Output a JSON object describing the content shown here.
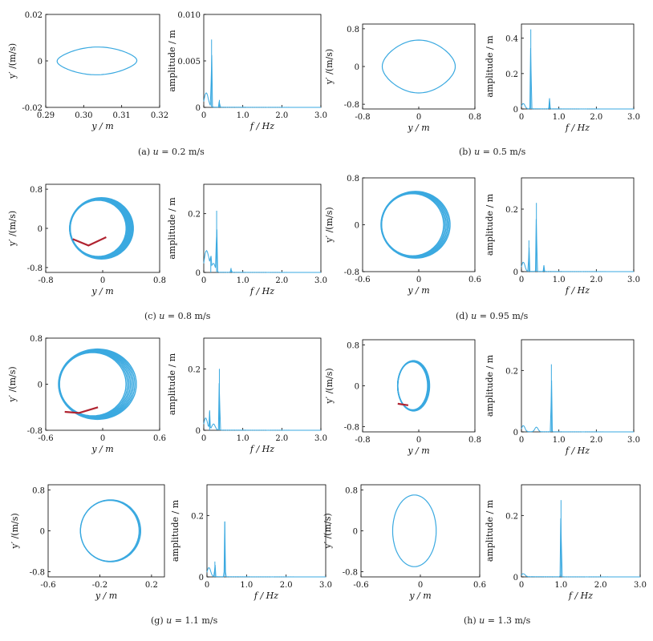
{
  "colors": {
    "trace": "#3aa9e0",
    "highlight": "#b02330",
    "axis": "#000000"
  },
  "captions": [
    {
      "letter": "(a)",
      "sym": "u",
      "eq": "=",
      "val": "0.2 m/s"
    },
    {
      "letter": "(b)",
      "sym": "u",
      "eq": "=",
      "val": "0.5 m/s"
    },
    {
      "letter": "(c)",
      "sym": "u",
      "eq": "=",
      "val": "0.8 m/s"
    },
    {
      "letter": "(d)",
      "sym": "u",
      "eq": "=",
      "val": "0.95 m/s"
    },
    {
      "letter": "(g)",
      "sym": "u",
      "eq": "=",
      "val": "1.1 m/s"
    },
    {
      "letter": "(h)",
      "sym": "u",
      "eq": "=",
      "val": "1.3 m/s"
    }
  ],
  "chart_data": [
    {
      "panel": "a",
      "type": "line",
      "kind": "phase",
      "xlabel": "y / m",
      "ylabel": "y′ /(m/s)",
      "xlim": [
        0.29,
        0.32
      ],
      "ylim": [
        -0.02,
        0.02
      ],
      "xticks": [
        "0.29",
        "0.30",
        "0.31",
        "0.32"
      ],
      "yticks": [
        "0.02",
        "0",
        "-0.02"
      ],
      "series": [
        {
          "values": {
            "cx": 0.3035,
            "cy": 0,
            "rx": 0.0105,
            "ry": 0.0052,
            "pinch": 0.15,
            "skew": 0.2
          }
        }
      ]
    },
    {
      "panel": "a",
      "type": "line",
      "kind": "spectrum",
      "xlabel": "f / Hz",
      "ylabel": "amplitude / m",
      "xlim": [
        0,
        3
      ],
      "ylim": [
        0,
        0.01
      ],
      "xticks": [
        "0",
        "1.0",
        "2.0",
        "3.0"
      ],
      "yticks": [
        "0.010",
        "0.005",
        "0"
      ],
      "series": [
        {
          "values": {
            "peaks": [
              [
                0.2,
                0.0073
              ],
              [
                0.4,
                0.0008
              ]
            ],
            "floor": [
              [
                0.05,
                0.0012
              ],
              [
                0.1,
                0.0006
              ]
            ]
          }
        }
      ]
    },
    {
      "panel": "b",
      "type": "line",
      "kind": "phase",
      "xlabel": "y / m",
      "ylabel": "y′ /(m/s)",
      "xlim": [
        -0.8,
        0.8
      ],
      "ylim": [
        -0.9,
        0.9
      ],
      "xticks": [
        "-0.8",
        "0",
        "0.8"
      ],
      "yticks": [
        "0.8",
        "0",
        "-0.8"
      ],
      "series": [
        {
          "values": {
            "cx": 0,
            "cy": 0,
            "rx": 0.52,
            "ry": 0.5,
            "pinch": 0.12,
            "skew": 0
          }
        }
      ]
    },
    {
      "panel": "b",
      "type": "line",
      "kind": "spectrum",
      "xlabel": "f / Hz",
      "ylabel": "amplitude / m",
      "xlim": [
        0,
        3
      ],
      "ylim": [
        0,
        0.48
      ],
      "xticks": [
        "0",
        "1.0",
        "2.0",
        "3.0"
      ],
      "yticks": [
        "0.4",
        "0.2",
        "0"
      ],
      "series": [
        {
          "values": {
            "peaks": [
              [
                0.25,
                0.45
              ],
              [
                0.75,
                0.06
              ]
            ],
            "floor": [
              [
                0.05,
                0.03
              ]
            ]
          }
        }
      ]
    },
    {
      "panel": "c",
      "type": "line",
      "kind": "phase",
      "xlabel": "y / m",
      "ylabel": "y′ /(m/s)",
      "xlim": [
        -0.8,
        0.8
      ],
      "ylim": [
        -0.9,
        0.9
      ],
      "xticks": [
        "-0.8",
        "0",
        "0.8"
      ],
      "yticks": [
        "0.8",
        "0",
        "-0.8"
      ],
      "series": [
        {
          "values": {
            "cx": -0.04,
            "cy": 0,
            "rx": 0.42,
            "ry": 0.6,
            "loops": 9,
            "spread": 0.22,
            "highlight": [
              [
                -0.42,
                -0.22
              ],
              [
                -0.2,
                -0.35
              ],
              [
                0.05,
                -0.18
              ]
            ]
          }
        }
      ]
    },
    {
      "panel": "c",
      "type": "line",
      "kind": "spectrum",
      "xlabel": "f / Hz",
      "ylabel": "amplitude / m",
      "xlim": [
        0,
        3
      ],
      "ylim": [
        0,
        0.3
      ],
      "xticks": [
        "0",
        "1.0",
        "2.0",
        "3.0"
      ],
      "yticks": [
        "0.2",
        "0"
      ],
      "series": [
        {
          "values": {
            "peaks": [
              [
                0.33,
                0.21
              ],
              [
                0.18,
                0.05
              ],
              [
                0.7,
                0.015
              ]
            ],
            "floor": [
              [
                0.05,
                0.06
              ],
              [
                0.12,
                0.04
              ],
              [
                0.25,
                0.03
              ]
            ]
          }
        }
      ]
    },
    {
      "panel": "d",
      "type": "line",
      "kind": "phase",
      "xlabel": "y / m",
      "ylabel": "y′ /(m/s)",
      "xlim": [
        -0.6,
        0.6
      ],
      "ylim": [
        -0.8,
        0.8
      ],
      "xticks": [
        "-0.6",
        "0",
        "0.6"
      ],
      "yticks": [
        "0.8",
        "0",
        "-0.8"
      ],
      "series": [
        {
          "values": {
            "cx": -0.05,
            "cy": 0,
            "rx": 0.35,
            "ry": 0.55,
            "loops": 6,
            "spread": 0.18,
            "highlight": []
          }
        }
      ]
    },
    {
      "panel": "d",
      "type": "line",
      "kind": "spectrum",
      "xlabel": "f / Hz",
      "ylabel": "amplitude / m",
      "xlim": [
        0,
        3
      ],
      "ylim": [
        0,
        0.3
      ],
      "xticks": [
        "0",
        "1.0",
        "2.0",
        "3.0"
      ],
      "yticks": [
        "0.2",
        "0"
      ],
      "series": [
        {
          "values": {
            "peaks": [
              [
                0.4,
                0.22
              ],
              [
                0.2,
                0.1
              ],
              [
                0.6,
                0.02
              ]
            ],
            "floor": [
              [
                0.05,
                0.03
              ]
            ]
          }
        }
      ]
    },
    {
      "panel": "g",
      "type": "line",
      "kind": "phase",
      "xlabel": "y / m",
      "ylabel": "y′ /(m/s)",
      "xlim": [
        -0.6,
        0.6
      ],
      "ylim": [
        -0.8,
        0.8
      ],
      "xticks": [
        "-0.6",
        "0",
        "0.6"
      ],
      "yticks": [
        "0.8",
        "0",
        "-0.8"
      ],
      "series": [
        {
          "values": {
            "cx": -0.08,
            "cy": 0,
            "rx": 0.38,
            "ry": 0.58,
            "loops": 8,
            "spread": 0.26,
            "highlight": [
              [
                -0.4,
                -0.48
              ],
              [
                -0.25,
                -0.5
              ],
              [
                -0.05,
                -0.4
              ]
            ]
          }
        }
      ]
    },
    {
      "panel": "g",
      "type": "line",
      "kind": "spectrum",
      "xlabel": "f / Hz",
      "ylabel": "amplitude / m",
      "xlim": [
        0,
        3
      ],
      "ylim": [
        0,
        0.3
      ],
      "xticks": [
        "0",
        "1.0",
        "2.0",
        "3.0"
      ],
      "yticks": [
        "0.2",
        "0"
      ],
      "series": [
        {
          "values": {
            "peaks": [
              [
                0.4,
                0.2
              ],
              [
                0.15,
                0.06
              ]
            ],
            "floor": [
              [
                0.05,
                0.04
              ],
              [
                0.25,
                0.02
              ]
            ]
          }
        }
      ]
    },
    {
      "panel": "h1",
      "type": "line",
      "kind": "phase",
      "xlabel": "y / m",
      "ylabel": "y′ /(m/s)",
      "xlim": [
        -0.8,
        0.8
      ],
      "ylim": [
        -0.9,
        0.9
      ],
      "xticks": [
        "-0.8",
        "0",
        "0.8"
      ],
      "yticks": [
        "0.8",
        "0",
        "-0.8"
      ],
      "series": [
        {
          "values": {
            "cx": -0.08,
            "cy": 0,
            "rx": 0.22,
            "ry": 0.48,
            "loops": 7,
            "spread": 0.12,
            "highlight": [
              [
                -0.3,
                -0.35
              ],
              [
                -0.15,
                -0.38
              ]
            ]
          }
        }
      ]
    },
    {
      "panel": "h1",
      "type": "line",
      "kind": "spectrum",
      "xlabel": "f / Hz",
      "ylabel": "amplitude / m",
      "xlim": [
        0,
        3
      ],
      "ylim": [
        0,
        0.3
      ],
      "xticks": [
        "0",
        "1.0",
        "2.0",
        "3.0"
      ],
      "yticks": [
        "0.2",
        "0"
      ],
      "series": [
        {
          "values": {
            "peaks": [
              [
                0.8,
                0.22
              ]
            ],
            "floor": [
              [
                0.05,
                0.02
              ],
              [
                0.4,
                0.015
              ]
            ]
          }
        }
      ]
    },
    {
      "panel": "g2",
      "type": "line",
      "kind": "phase",
      "xlabel": "y / m",
      "ylabel": "y′ /(m/s)",
      "xlim": [
        -0.6,
        0.3
      ],
      "ylim": [
        -0.9,
        0.9
      ],
      "xticks": [
        "-0.6",
        "-0.2",
        "0.2"
      ],
      "yticks": [
        "0.8",
        "0",
        "-0.8"
      ],
      "series": [
        {
          "values": {
            "cx": -0.12,
            "cy": 0,
            "rx": 0.23,
            "ry": 0.6,
            "loops": 3,
            "spread": 0.05,
            "highlight": []
          }
        }
      ]
    },
    {
      "panel": "g2",
      "type": "line",
      "kind": "spectrum",
      "xlabel": "f / Hz",
      "ylabel": "amplitude / m",
      "xlim": [
        0,
        3
      ],
      "ylim": [
        0,
        0.3
      ],
      "xticks": [
        "0",
        "1.0",
        "2.0",
        "3.0"
      ],
      "yticks": [
        "0.2",
        "0"
      ],
      "series": [
        {
          "values": {
            "peaks": [
              [
                0.45,
                0.18
              ],
              [
                0.2,
                0.05
              ]
            ],
            "floor": [
              [
                0.05,
                0.03
              ]
            ]
          }
        }
      ]
    },
    {
      "panel": "h2",
      "type": "line",
      "kind": "phase",
      "xlabel": "y / m",
      "ylabel": "y′ /(m/s)",
      "xlim": [
        -0.6,
        0.6
      ],
      "ylim": [
        -0.9,
        0.9
      ],
      "xticks": [
        "-0.6",
        "0",
        "0.6"
      ],
      "yticks": [
        "0.8",
        "0",
        "-0.8"
      ],
      "series": [
        {
          "values": {
            "cx": -0.06,
            "cy": 0,
            "rx": 0.22,
            "ry": 0.7,
            "loops": 1,
            "spread": 0,
            "highlight": []
          }
        }
      ]
    },
    {
      "panel": "h2",
      "type": "line",
      "kind": "spectrum",
      "xlabel": "f / Hz",
      "ylabel": "amplitude / m",
      "xlim": [
        0,
        3
      ],
      "ylim": [
        0,
        0.3
      ],
      "xticks": [
        "0",
        "1.0",
        "2.0",
        "3.0"
      ],
      "yticks": [
        "0.2",
        "0"
      ],
      "series": [
        {
          "values": {
            "peaks": [
              [
                1.0,
                0.25
              ]
            ],
            "floor": [
              [
                0.05,
                0.01
              ]
            ]
          }
        }
      ]
    }
  ]
}
